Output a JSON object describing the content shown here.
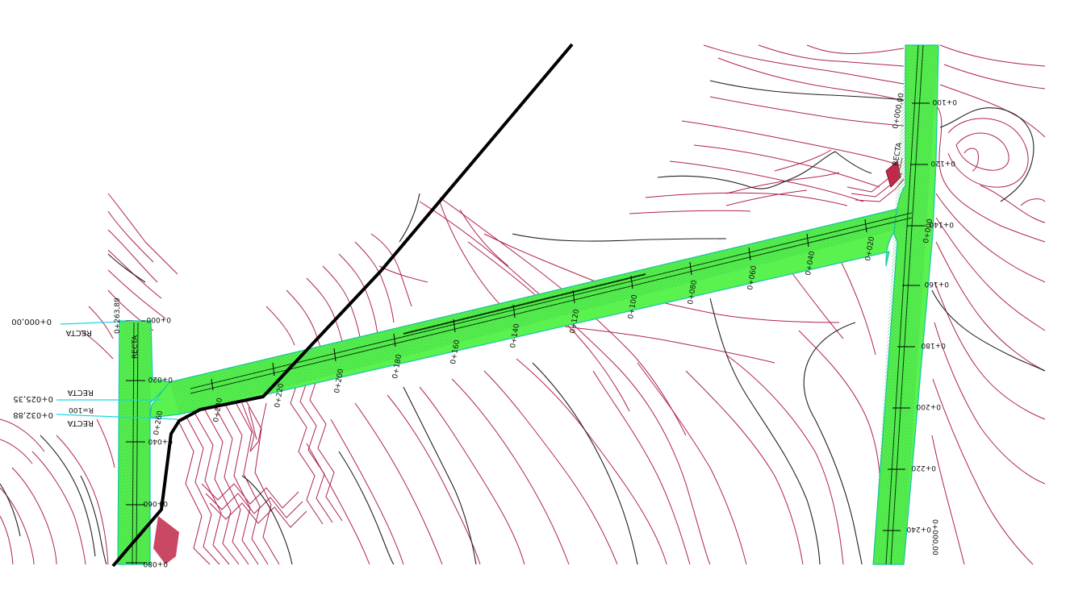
{
  "map": {
    "colors": {
      "road_fill": "#59f24f",
      "road_edge": "#12c9a6",
      "contour_primary": "#b0234d",
      "contour_index": "#222222",
      "alignment_line": "#000000",
      "leader_lines": "#1ad5e8"
    },
    "left_annotations": {
      "recta_top": "RECTA",
      "station_start": "0+000,00",
      "recta_mid": "RECTA",
      "station_mid": "0+025,35",
      "radius": "R=100",
      "station_lower": "0+032,88",
      "recta_low": "RECTA"
    },
    "left_road_labels": {
      "end_station": "0+263,89",
      "recta": "RECTA",
      "st_000": "0+000",
      "st_020": "0+020",
      "st_040": "0+040",
      "st_060": "0+060",
      "st_080": "0+080"
    },
    "main_road_stations": [
      "0+260",
      "0+240",
      "0+220",
      "0+200",
      "0+180",
      "0+160",
      "0+140",
      "0+120",
      "0+100",
      "0+080",
      "0+060",
      "0+040",
      "0+020",
      "0+000"
    ],
    "right_road_labels": {
      "start_station": "0+000,00",
      "recta": "RECTA",
      "st_100": "0+100",
      "st_120": "0+120",
      "st_140": "0+140",
      "st_160": "0+160",
      "st_180": "0+180",
      "st_200": "0+200",
      "st_220": "0+220",
      "st_240": "0+240",
      "end_station": "0+000,00"
    }
  }
}
